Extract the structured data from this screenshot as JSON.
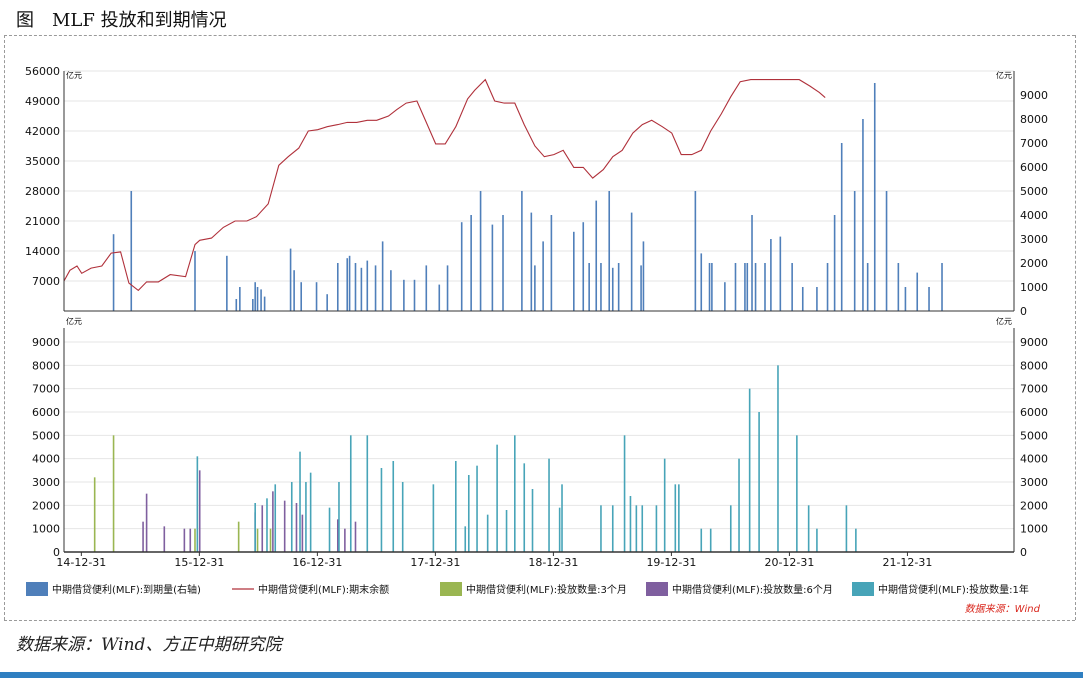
{
  "page": {
    "title": "图　MLF 投放和到期情况",
    "source": "数据来源：Wind、方正中期研究院"
  },
  "chart_data": [
    {
      "type": "bar+line",
      "panel": "top",
      "units": {
        "left": "亿元",
        "right": "亿元"
      },
      "left_axis": {
        "range": [
          0,
          56000
        ],
        "ticks": [
          7000,
          14000,
          21000,
          28000,
          35000,
          42000,
          49000,
          56000
        ]
      },
      "right_axis": {
        "range": [
          0,
          10000
        ],
        "ticks": [
          0,
          1000,
          2000,
          3000,
          4000,
          5000,
          6000,
          7000,
          8000,
          9000
        ]
      },
      "x_ticks": [
        "14-12-31",
        "15-12-31",
        "16-12-31",
        "17-12-31",
        "18-12-31",
        "19-12-31",
        "20-12-31",
        "21-12-31"
      ],
      "x_range": [
        2014.85,
        2022.9
      ],
      "line_series": {
        "name": "中期借贷便利(MLF):期末余额",
        "color": "#b0313b",
        "axis": "left",
        "points": [
          [
            2014.85,
            7000
          ],
          [
            2014.9,
            9500
          ],
          [
            2014.96,
            10500
          ],
          [
            2015.0,
            8800
          ],
          [
            2015.08,
            10000
          ],
          [
            2015.17,
            10500
          ],
          [
            2015.25,
            13500
          ],
          [
            2015.33,
            13800
          ],
          [
            2015.4,
            6500
          ],
          [
            2015.48,
            4800
          ],
          [
            2015.55,
            6800
          ],
          [
            2015.65,
            6800
          ],
          [
            2015.75,
            8500
          ],
          [
            2015.88,
            8000
          ],
          [
            2015.96,
            15500
          ],
          [
            2016.0,
            16500
          ],
          [
            2016.1,
            17000
          ],
          [
            2016.2,
            19500
          ],
          [
            2016.3,
            21000
          ],
          [
            2016.4,
            21000
          ],
          [
            2016.48,
            22000
          ],
          [
            2016.58,
            25000
          ],
          [
            2016.67,
            34000
          ],
          [
            2016.75,
            36000
          ],
          [
            2016.84,
            38000
          ],
          [
            2016.92,
            42000
          ],
          [
            2017.0,
            42300
          ],
          [
            2017.08,
            43000
          ],
          [
            2017.17,
            43500
          ],
          [
            2017.25,
            44000
          ],
          [
            2017.33,
            44000
          ],
          [
            2017.42,
            44500
          ],
          [
            2017.5,
            44500
          ],
          [
            2017.6,
            45500
          ],
          [
            2017.67,
            47000
          ],
          [
            2017.75,
            48500
          ],
          [
            2017.84,
            49000
          ],
          [
            2017.92,
            44000
          ],
          [
            2018.0,
            39000
          ],
          [
            2018.08,
            39000
          ],
          [
            2018.17,
            43000
          ],
          [
            2018.27,
            49500
          ],
          [
            2018.33,
            51500
          ],
          [
            2018.42,
            54000
          ],
          [
            2018.5,
            49000
          ],
          [
            2018.58,
            48500
          ],
          [
            2018.67,
            48500
          ],
          [
            2018.75,
            43500
          ],
          [
            2018.84,
            38500
          ],
          [
            2018.92,
            36000
          ],
          [
            2019.0,
            36500
          ],
          [
            2019.08,
            37500
          ],
          [
            2019.17,
            33500
          ],
          [
            2019.25,
            33500
          ],
          [
            2019.33,
            31000
          ],
          [
            2019.42,
            33000
          ],
          [
            2019.5,
            36000
          ],
          [
            2019.58,
            37500
          ],
          [
            2019.67,
            41500
          ],
          [
            2019.75,
            43500
          ],
          [
            2019.83,
            44500
          ],
          [
            2019.92,
            43000
          ],
          [
            2020.0,
            41500
          ],
          [
            2020.08,
            36500
          ],
          [
            2020.17,
            36500
          ],
          [
            2020.25,
            37500
          ],
          [
            2020.33,
            42000
          ],
          [
            2020.42,
            46000
          ],
          [
            2020.5,
            50000
          ],
          [
            2020.58,
            53500
          ],
          [
            2020.67,
            54000
          ],
          [
            2020.75,
            54000
          ],
          [
            2020.83,
            54000
          ],
          [
            2020.92,
            54000
          ],
          [
            2021.0,
            54000
          ],
          [
            2021.08,
            54000
          ],
          [
            2021.17,
            52500
          ],
          [
            2021.25,
            51000
          ],
          [
            2021.3,
            49800
          ]
        ]
      },
      "bar_series": {
        "name": "中期借贷便利(MLF):到期量(右轴)",
        "color": "#4f7fba",
        "axis": "right",
        "points": [
          [
            2015.27,
            3200
          ],
          [
            2015.42,
            5000
          ],
          [
            2015.96,
            2500
          ],
          [
            2016.23,
            2300
          ],
          [
            2016.31,
            500
          ],
          [
            2016.34,
            1000
          ],
          [
            2016.45,
            500
          ],
          [
            2016.47,
            1200
          ],
          [
            2016.49,
            1000
          ],
          [
            2016.52,
            900
          ],
          [
            2016.55,
            600
          ],
          [
            2016.77,
            2600
          ],
          [
            2016.8,
            1700
          ],
          [
            2016.86,
            1200
          ],
          [
            2016.99,
            1200
          ],
          [
            2017.08,
            700
          ],
          [
            2017.17,
            2000
          ],
          [
            2017.25,
            2200
          ],
          [
            2017.27,
            2300
          ],
          [
            2017.32,
            2000
          ],
          [
            2017.37,
            1800
          ],
          [
            2017.42,
            2100
          ],
          [
            2017.49,
            1900
          ],
          [
            2017.55,
            2900
          ],
          [
            2017.62,
            1700
          ],
          [
            2017.73,
            1300
          ],
          [
            2017.82,
            1300
          ],
          [
            2017.92,
            1900
          ],
          [
            2018.03,
            1100
          ],
          [
            2018.1,
            1900
          ],
          [
            2018.22,
            3700
          ],
          [
            2018.3,
            4000
          ],
          [
            2018.38,
            5000
          ],
          [
            2018.48,
            3600
          ],
          [
            2018.57,
            4000
          ],
          [
            2018.73,
            5000
          ],
          [
            2018.81,
            4100
          ],
          [
            2018.84,
            1900
          ],
          [
            2018.91,
            2900
          ],
          [
            2018.98,
            4000
          ],
          [
            2019.17,
            3300
          ],
          [
            2019.25,
            3700
          ],
          [
            2019.3,
            2000
          ],
          [
            2019.36,
            4600
          ],
          [
            2019.4,
            2000
          ],
          [
            2019.47,
            5000
          ],
          [
            2019.5,
            1800
          ],
          [
            2019.55,
            2000
          ],
          [
            2019.66,
            4100
          ],
          [
            2019.74,
            1900
          ],
          [
            2019.76,
            2900
          ],
          [
            2020.2,
            5000
          ],
          [
            2020.25,
            2400
          ],
          [
            2020.32,
            2000
          ],
          [
            2020.34,
            2000
          ],
          [
            2020.45,
            1200
          ],
          [
            2020.54,
            2000
          ],
          [
            2020.62,
            2000
          ],
          [
            2020.64,
            2000
          ],
          [
            2020.68,
            4000
          ],
          [
            2020.71,
            2000
          ],
          [
            2020.79,
            2000
          ],
          [
            2020.84,
            3000
          ],
          [
            2020.92,
            3100
          ],
          [
            2021.02,
            2000
          ],
          [
            2021.11,
            1000
          ],
          [
            2021.23,
            1000
          ],
          [
            2021.32,
            2000
          ],
          [
            2021.38,
            4000
          ],
          [
            2021.44,
            7000
          ],
          [
            2021.55,
            5000
          ],
          [
            2021.62,
            8000
          ],
          [
            2021.66,
            2000
          ],
          [
            2021.72,
            9500
          ],
          [
            2021.82,
            5000
          ],
          [
            2021.92,
            2000
          ],
          [
            2021.98,
            1000
          ],
          [
            2022.08,
            1600
          ],
          [
            2022.18,
            1000
          ],
          [
            2022.29,
            2000
          ]
        ]
      }
    },
    {
      "type": "bar",
      "panel": "bottom",
      "units": {
        "left": "亿元",
        "right": "亿元"
      },
      "left_axis": {
        "range": [
          0,
          9600
        ],
        "ticks": [
          0,
          1000,
          2000,
          3000,
          4000,
          5000,
          6000,
          7000,
          8000,
          9000
        ]
      },
      "right_axis": {
        "range": [
          0,
          9600
        ],
        "ticks": [
          0,
          1000,
          2000,
          3000,
          4000,
          5000,
          6000,
          7000,
          8000,
          9000
        ]
      },
      "x_ticks": [
        "14-12-31",
        "15-12-31",
        "16-12-31",
        "17-12-31",
        "18-12-31",
        "19-12-31",
        "20-12-31",
        "21-12-31"
      ],
      "x_range": [
        2014.85,
        2022.9
      ],
      "series": [
        {
          "name": "中期借贷便利(MLF):投放数量:3个月",
          "color": "#9ab652",
          "points": [
            [
              2015.11,
              3200
            ],
            [
              2015.27,
              5000
            ],
            [
              2015.96,
              1000
            ],
            [
              2016.33,
              1300
            ],
            [
              2016.49,
              1000
            ],
            [
              2016.6,
              1000
            ]
          ]
        },
        {
          "name": "中期借贷便利(MLF):投放数量:6个月",
          "color": "#7f5f9f",
          "points": [
            [
              2015.52,
              1300
            ],
            [
              2015.55,
              2500
            ],
            [
              2015.7,
              1100
            ],
            [
              2015.87,
              1000
            ],
            [
              2015.92,
              1000
            ],
            [
              2016.0,
              3500
            ],
            [
              2016.47,
              1700
            ],
            [
              2016.53,
              2000
            ],
            [
              2016.62,
              2600
            ],
            [
              2016.72,
              2200
            ],
            [
              2016.82,
              2100
            ],
            [
              2016.87,
              1600
            ],
            [
              2017.17,
              1400
            ],
            [
              2017.23,
              1000
            ],
            [
              2017.32,
              1300
            ]
          ]
        },
        {
          "name": "中期借贷便利(MLF):投放数量:1年",
          "color": "#47a4b8",
          "points": [
            [
              2015.98,
              4100
            ],
            [
              2016.47,
              2100
            ],
            [
              2016.57,
              2300
            ],
            [
              2016.64,
              2900
            ],
            [
              2016.78,
              3000
            ],
            [
              2016.85,
              4300
            ],
            [
              2016.9,
              3000
            ],
            [
              2016.94,
              3400
            ],
            [
              2017.1,
              1900
            ],
            [
              2017.18,
              3000
            ],
            [
              2017.28,
              5000
            ],
            [
              2017.42,
              5000
            ],
            [
              2017.54,
              3600
            ],
            [
              2017.64,
              3900
            ],
            [
              2017.72,
              3000
            ],
            [
              2017.98,
              2900
            ],
            [
              2018.17,
              3900
            ],
            [
              2018.25,
              1100
            ],
            [
              2018.28,
              3300
            ],
            [
              2018.35,
              3700
            ],
            [
              2018.44,
              1600
            ],
            [
              2018.52,
              4600
            ],
            [
              2018.6,
              1800
            ],
            [
              2018.67,
              5000
            ],
            [
              2018.75,
              3800
            ],
            [
              2018.82,
              2700
            ],
            [
              2018.96,
              4000
            ],
            [
              2019.05,
              1900
            ],
            [
              2019.07,
              2900
            ],
            [
              2019.4,
              2000
            ],
            [
              2019.5,
              2000
            ],
            [
              2019.6,
              5000
            ],
            [
              2019.65,
              2400
            ],
            [
              2019.7,
              2000
            ],
            [
              2019.75,
              2000
            ],
            [
              2019.87,
              2000
            ],
            [
              2019.94,
              4000
            ],
            [
              2020.03,
              2900
            ],
            [
              2020.06,
              2900
            ],
            [
              2020.25,
              1000
            ],
            [
              2020.33,
              1000
            ],
            [
              2020.5,
              2000
            ],
            [
              2020.57,
              4000
            ],
            [
              2020.66,
              7000
            ],
            [
              2020.74,
              6000
            ],
            [
              2020.9,
              8000
            ],
            [
              2021.06,
              5000
            ],
            [
              2021.16,
              2000
            ],
            [
              2021.23,
              1000
            ],
            [
              2021.48,
              2000
            ],
            [
              2021.56,
              1000
            ]
          ]
        }
      ]
    }
  ],
  "legend": [
    {
      "label": "中期借贷便利(MLF):到期量(右轴)",
      "color": "#4f7fba",
      "kind": "box"
    },
    {
      "label": "中期借贷便利(MLF):期末余额",
      "color": "#b0313b",
      "kind": "line"
    },
    {
      "label": "中期借贷便利(MLF):投放数量:3个月",
      "color": "#9ab652",
      "kind": "box"
    },
    {
      "label": "中期借贷便利(MLF):投放数量:6个月",
      "color": "#7f5f9f",
      "kind": "box"
    },
    {
      "label": "中期借贷便利(MLF):投放数量:1年",
      "color": "#47a4b8",
      "kind": "box"
    }
  ],
  "chart_source": "数据来源：Wind"
}
